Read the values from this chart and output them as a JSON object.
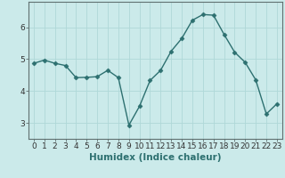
{
  "x": [
    0,
    1,
    2,
    3,
    4,
    5,
    6,
    7,
    8,
    9,
    10,
    11,
    12,
    13,
    14,
    15,
    16,
    17,
    18,
    19,
    20,
    21,
    22,
    23
  ],
  "y": [
    4.87,
    4.97,
    4.87,
    4.8,
    4.42,
    4.43,
    4.45,
    4.65,
    4.42,
    2.93,
    3.52,
    4.33,
    4.65,
    5.25,
    5.65,
    6.22,
    6.4,
    6.38,
    5.78,
    5.22,
    4.9,
    4.35,
    3.28,
    3.6
  ],
  "line_color": "#2d7070",
  "marker": "D",
  "marker_size": 2.5,
  "bg_color": "#cbeaea",
  "grid_color": "#afd8d8",
  "xlabel": "Humidex (Indice chaleur)",
  "ylim": [
    2.5,
    6.8
  ],
  "xlim": [
    -0.5,
    23.5
  ],
  "yticks": [
    3,
    4,
    5,
    6
  ],
  "xticks": [
    0,
    1,
    2,
    3,
    4,
    5,
    6,
    7,
    8,
    9,
    10,
    11,
    12,
    13,
    14,
    15,
    16,
    17,
    18,
    19,
    20,
    21,
    22,
    23
  ],
  "tick_fontsize": 6.5,
  "xlabel_fontsize": 7.5,
  "spine_color": "#607070"
}
